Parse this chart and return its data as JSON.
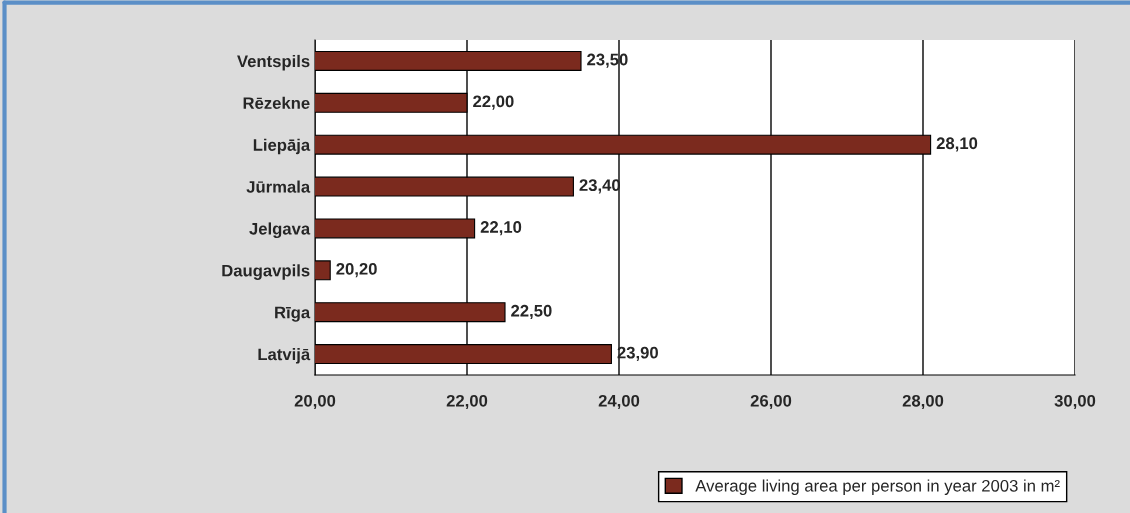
{
  "chart_data": {
    "type": "bar",
    "orientation": "horizontal",
    "categories": [
      "Ventspils",
      "Rēzekne",
      "Liepāja",
      "Jūrmala",
      "Jelgava",
      "Daugavpils",
      "Rīga",
      "Latvijā"
    ],
    "series": [
      {
        "name": "Average living area per person in year 2003 in m²",
        "color": "#7b2a1e",
        "values": [
          23.5,
          22.0,
          28.1,
          23.4,
          22.1,
          20.2,
          22.5,
          23.9
        ],
        "value_labels": [
          "23,50",
          "22,00",
          "28,10",
          "23,40",
          "22,10",
          "20,20",
          "22,50",
          "23,90"
        ]
      }
    ],
    "xlim": [
      20,
      30
    ],
    "xticks": [
      {
        "value": 20,
        "label": "20,00"
      },
      {
        "value": 22,
        "label": "22,00"
      },
      {
        "value": 24,
        "label": "24,00"
      },
      {
        "value": 26,
        "label": "26,00"
      },
      {
        "value": 28,
        "label": "28,00"
      },
      {
        "value": 30,
        "label": "30,00"
      }
    ],
    "grid": "x",
    "legend": "bottom"
  }
}
